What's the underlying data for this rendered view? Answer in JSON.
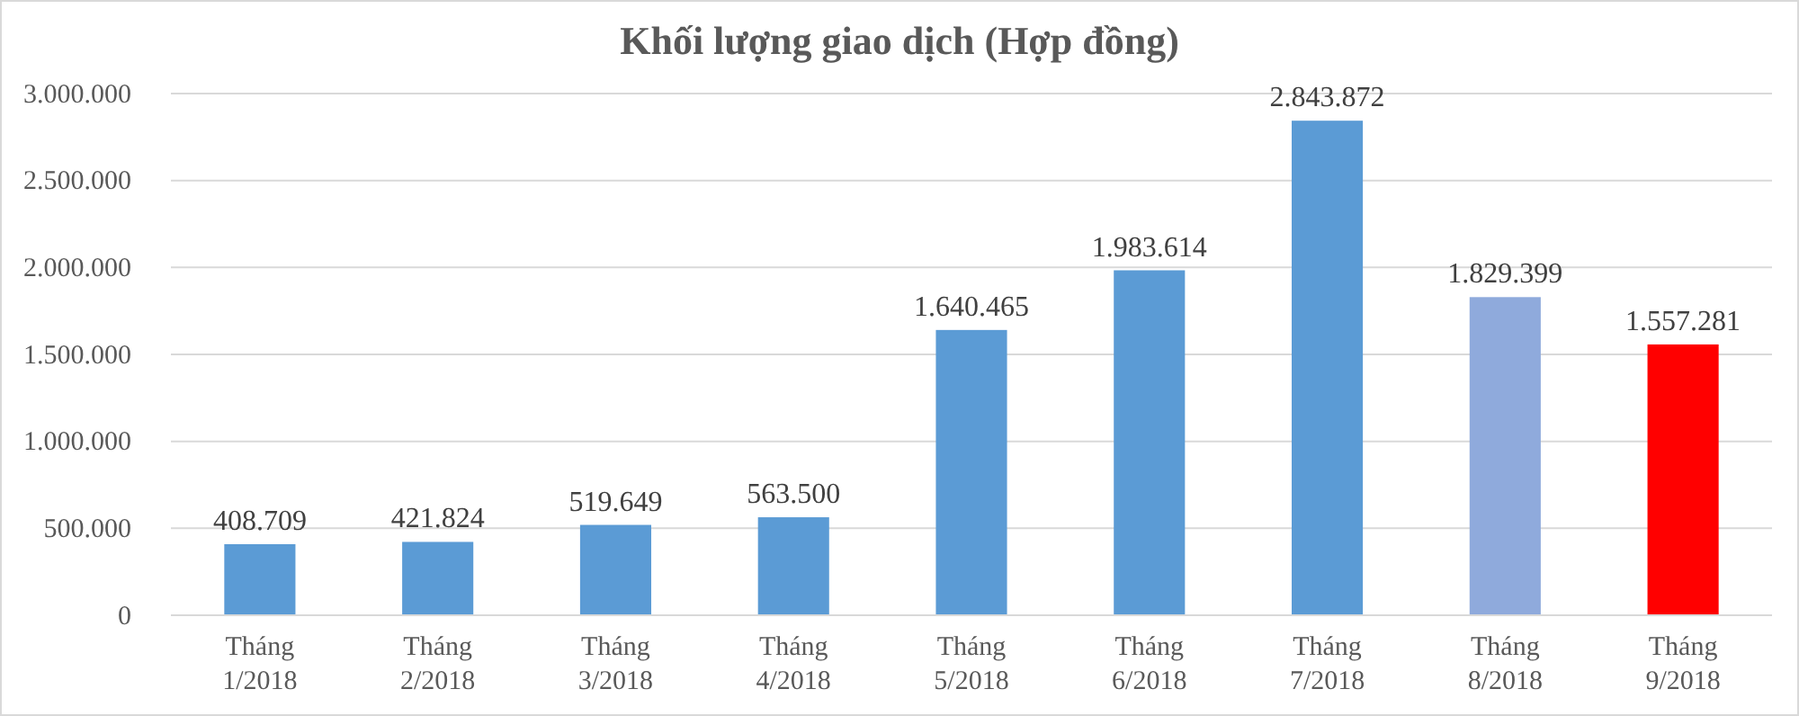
{
  "chart_data": {
    "type": "bar",
    "title": "Khối lượng giao dịch (Hợp đồng)",
    "categories": [
      "Tháng 1/2018",
      "Tháng 2/2018",
      "Tháng 3/2018",
      "Tháng 4/2018",
      "Tháng 5/2018",
      "Tháng 6/2018",
      "Tháng 7/2018",
      "Tháng 8/2018",
      "Tháng 9/2018"
    ],
    "values": [
      408709,
      421824,
      519649,
      563500,
      1640465,
      1983614,
      2843872,
      1829399,
      1557281
    ],
    "colors": [
      "#5b9bd5",
      "#5b9bd5",
      "#5b9bd5",
      "#5b9bd5",
      "#5b9bd5",
      "#5b9bd5",
      "#5b9bd5",
      "#8faadc",
      "#ff0000"
    ],
    "value_labels": [
      "408.709",
      "421.824",
      "519.649",
      "563.500",
      "1.640.465",
      "1.983.614",
      "2.843.872",
      "1.829.399",
      "1.557.281"
    ],
    "ylim": [
      0,
      3000000
    ],
    "yticks": [
      0,
      {
        "value": 500000,
        "label": "500.000"
      },
      {
        "value": 1000000,
        "label": "1.000.000"
      },
      {
        "value": 1500000,
        "label": "1.500.000"
      },
      {
        "value": 2000000,
        "label": "2.000.000"
      },
      {
        "value": 2500000,
        "label": "2.500.000"
      },
      {
        "value": 3000000,
        "label": "3.000.000"
      }
    ],
    "grid": "y"
  }
}
